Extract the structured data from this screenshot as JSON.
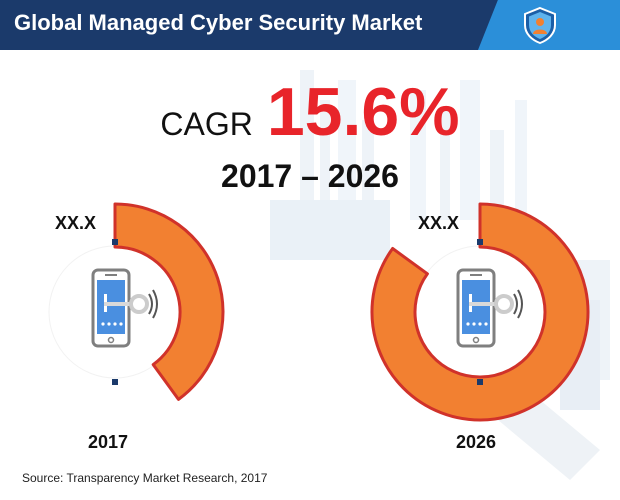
{
  "header": {
    "title": "Global Managed Cyber Security Market",
    "badge_icon": "shield-user-icon"
  },
  "headline": {
    "cagr_label": "CAGR",
    "cagr_value": "15.6%",
    "period": "2017 – 2026"
  },
  "chart_data": {
    "type": "pie",
    "title": "",
    "categories": [
      "2017",
      "2026"
    ],
    "value_labels": [
      "XX.X",
      "XX.X"
    ],
    "values": [
      0.4,
      0.85
    ],
    "value_unit": "fraction of ring filled"
  },
  "device_icon": "smartphone-lock-icon",
  "source": "Source: Transparency Market Research, 2017",
  "colors": {
    "header_bg": "#1b3a6b",
    "header_accent": "#2b8fd9",
    "cagr_value": "#e8242a",
    "ring_fill": "#f28031",
    "ring_stroke": "#d0322a",
    "ring_dot": "#1b3a6b",
    "phone_screen": "#4a8fe0",
    "phone_frame": "#7f7f7f",
    "background_circle": "#ffffff"
  }
}
